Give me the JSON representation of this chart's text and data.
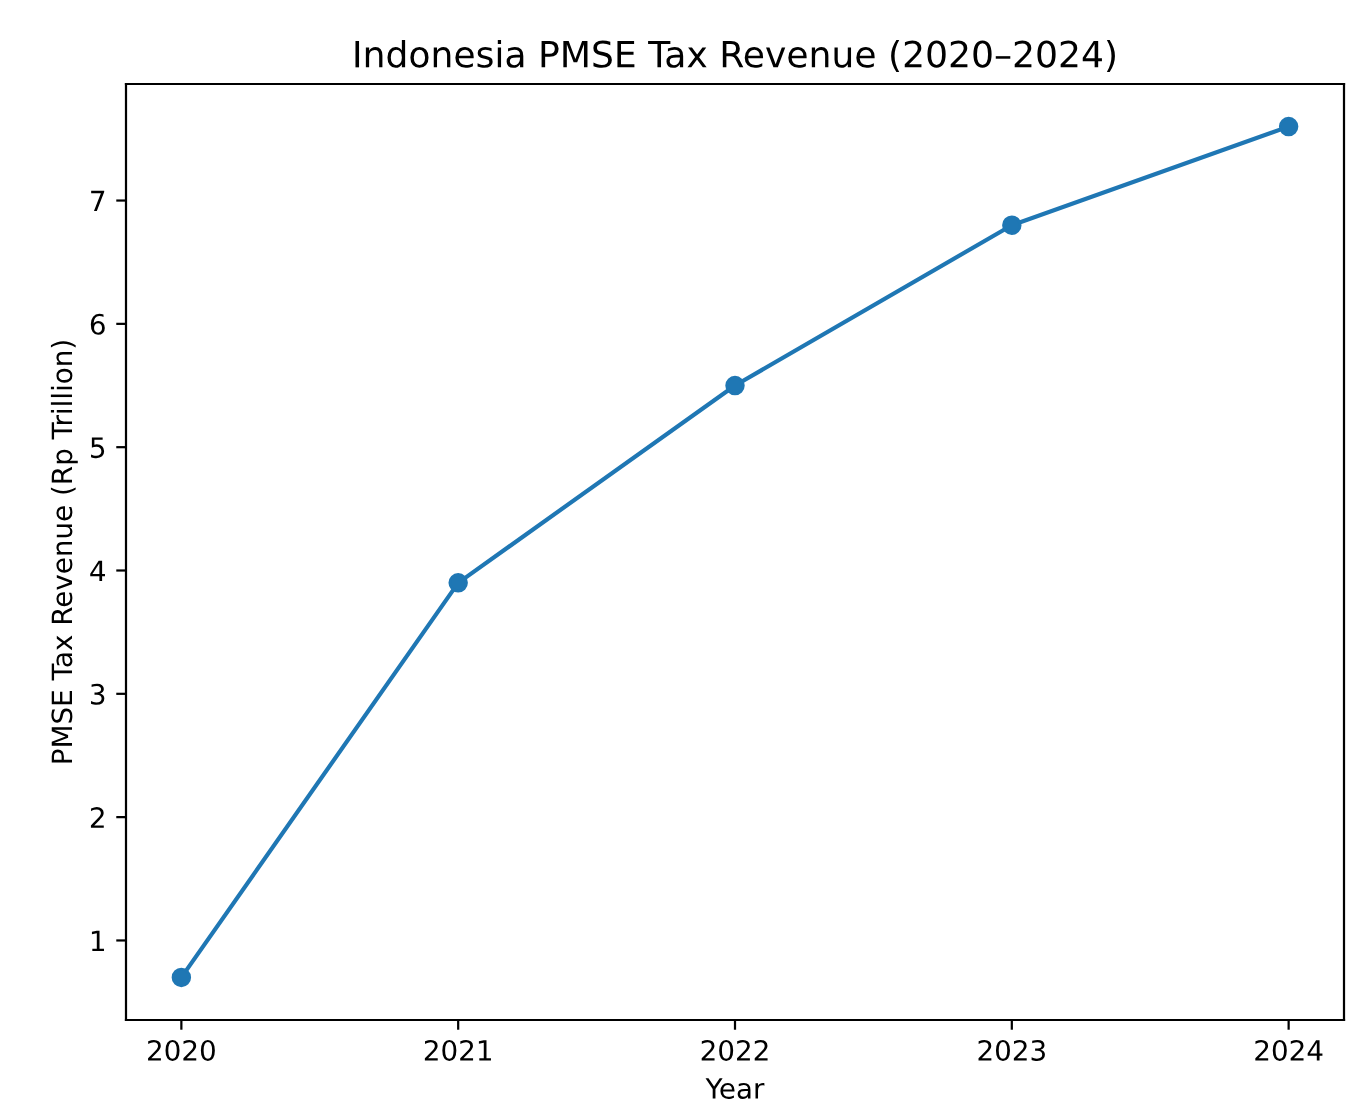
{
  "chart_data": {
    "type": "line",
    "title": "Indonesia PMSE Tax Revenue (2020–2024)",
    "xlabel": "Year",
    "ylabel": "PMSE Tax Revenue (Rp Trillion)",
    "x": [
      2020,
      2021,
      2022,
      2023,
      2024
    ],
    "series": [
      {
        "color": "#1f77b4",
        "values": [
          0.7,
          3.9,
          5.5,
          6.8,
          7.6
        ]
      }
    ],
    "xlim": [
      2019.8,
      2024.2
    ],
    "xticks": [
      2020,
      2021,
      2022,
      2023,
      2024
    ],
    "ylim": [
      0.355,
      7.945
    ],
    "yticks": [
      1,
      2,
      3,
      4,
      5,
      6,
      7
    ],
    "marker": "circle",
    "line_style": "solid",
    "grid": false,
    "legend": false
  }
}
